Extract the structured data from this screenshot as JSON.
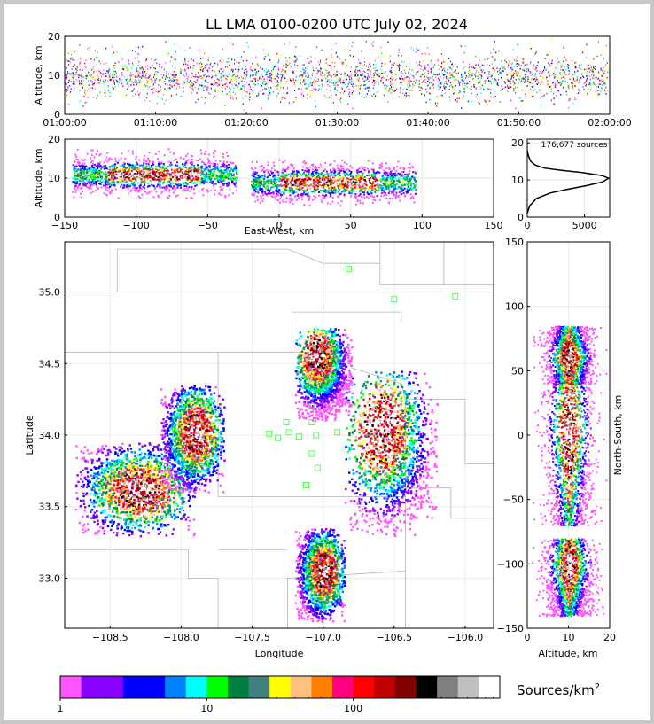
{
  "title": "LL LMA 0100-0200 UTC July 02, 2024",
  "chart_data": [
    {
      "id": "time_height",
      "type": "heatmap",
      "xlabel": "",
      "ylabel": "Altitude, km",
      "x_ticks": [
        "01:00:00",
        "01:10:00",
        "01:20:00",
        "01:30:00",
        "01:40:00",
        "01:50:00",
        "02:00:00"
      ],
      "xlim": [
        "01:00:00",
        "02:00:00"
      ],
      "ylim": [
        0,
        20
      ],
      "y_ticks": [
        0,
        10,
        20
      ],
      "grid": false,
      "description_values": {
        "dense_altitude_band_km": [
          4,
          15
        ],
        "peak_altitude_km": 10
      }
    },
    {
      "id": "ew_height",
      "type": "heatmap",
      "xlabel": "East-West, km",
      "ylabel": "Altitude, km",
      "xlim": [
        -150,
        150
      ],
      "x_ticks": [
        -150,
        -100,
        -50,
        0,
        50,
        100,
        150
      ],
      "ylim": [
        0,
        20
      ],
      "y_ticks": [
        0,
        10,
        20
      ],
      "grid": true,
      "clusters": [
        {
          "x_range_km": [
            -145,
            -30
          ],
          "z_range_km": [
            5,
            19
          ],
          "core_x_km": [
            -120,
            -55
          ],
          "core_z_km": 11
        },
        {
          "x_range_km": [
            -20,
            95
          ],
          "z_range_km": [
            3,
            15
          ],
          "core_x_km": [
            0,
            70
          ],
          "core_z_km": 9
        }
      ]
    },
    {
      "id": "altitude_histogram",
      "type": "line",
      "annotation": "176,677 sources",
      "xlim": [
        0,
        7200
      ],
      "x_ticks": [
        0,
        5000
      ],
      "ylim": [
        0,
        21
      ],
      "y_ticks": [
        0,
        10,
        20
      ],
      "x": [
        0,
        200,
        800,
        2000,
        3500,
        5200,
        6600,
        7100,
        6500,
        4800,
        3000,
        1500,
        700,
        300,
        100,
        0
      ],
      "y": [
        1,
        3,
        5,
        6.5,
        7.5,
        8.5,
        9.5,
        10.5,
        11.2,
        12,
        12.6,
        13.2,
        14,
        15,
        16.5,
        18
      ]
    },
    {
      "id": "plan_view",
      "type": "heatmap",
      "xlabel": "Longitude",
      "ylabel": "Latitude",
      "xlim": [
        -108.82,
        -105.8
      ],
      "ylim": [
        32.65,
        35.35
      ],
      "x_ticks": [
        -108.5,
        -108.0,
        -107.5,
        -107.0,
        -106.5,
        -106.0
      ],
      "x_tick_labels": [
        "−108.5",
        "−108.0",
        "−107.5",
        "−107.0",
        "−106.5",
        "−106.0"
      ],
      "y_ticks": [
        33.0,
        33.5,
        34.0,
        34.5,
        35.0
      ],
      "y_tick_labels": [
        "33.0",
        "33.5",
        "34.0",
        "34.5",
        "35.0"
      ],
      "stations": [
        {
          "lon": -106.82,
          "lat": 35.16
        },
        {
          "lon": -106.5,
          "lat": 34.95
        },
        {
          "lon": -106.07,
          "lat": 34.97
        },
        {
          "lon": -107.26,
          "lat": 34.09
        },
        {
          "lon": -107.08,
          "lat": 34.2
        },
        {
          "lon": -107.08,
          "lat": 34.09
        },
        {
          "lon": -107.38,
          "lat": 34.01
        },
        {
          "lon": -107.24,
          "lat": 34.02
        },
        {
          "lon": -107.32,
          "lat": 33.98
        },
        {
          "lon": -107.17,
          "lat": 33.99
        },
        {
          "lon": -107.05,
          "lat": 34.0
        },
        {
          "lon": -106.9,
          "lat": 34.02
        },
        {
          "lon": -107.08,
          "lat": 33.87
        },
        {
          "lon": -107.04,
          "lat": 33.77
        },
        {
          "lon": -107.12,
          "lat": 33.65
        }
      ],
      "storms": [
        {
          "lon_range": [
            -108.75,
            -107.9
          ],
          "lat_range": [
            33.3,
            33.95
          ],
          "core": [
            -108.3,
            33.62
          ]
        },
        {
          "lon_range": [
            -108.15,
            -107.7
          ],
          "lat_range": [
            33.6,
            34.35
          ],
          "core": [
            -107.9,
            34.02
          ]
        },
        {
          "lon_range": [
            -107.2,
            -106.8
          ],
          "lat_range": [
            34.1,
            34.75
          ],
          "core": [
            -107.05,
            34.55
          ]
        },
        {
          "lon_range": [
            -106.85,
            -106.2
          ],
          "lat_range": [
            33.3,
            34.45
          ],
          "core": [
            -106.6,
            34.05
          ]
        },
        {
          "lon_range": [
            -107.2,
            -106.85
          ],
          "lat_range": [
            32.7,
            33.35
          ],
          "core": [
            -107.0,
            33.05
          ]
        }
      ]
    },
    {
      "id": "ns_height",
      "type": "heatmap",
      "xlabel": "Altitude, km",
      "ylabel": "North-South, km",
      "xlim": [
        0,
        20
      ],
      "x_ticks": [
        0,
        10,
        20
      ],
      "ylim": [
        -150,
        150
      ],
      "y_ticks": [
        -150,
        -100,
        -50,
        0,
        50,
        100,
        150
      ],
      "y_tick_labels": [
        "−150",
        "−100",
        "−50",
        "0",
        "50",
        "100",
        "150"
      ]
    }
  ],
  "colorbar": {
    "label": "Sources/km",
    "label_exponent": "2",
    "tick_labels": [
      "1",
      "10",
      "100"
    ],
    "tick_values": [
      1,
      10,
      100
    ],
    "range": [
      1,
      1000
    ],
    "colors": [
      "#ff55ff",
      "#8800ff",
      "#8800ff",
      "#0000ff",
      "#0000ff",
      "#0080ff",
      "#00ffff",
      "#00ff00",
      "#008040",
      "#408080",
      "#ffff00",
      "#ffc080",
      "#ff8000",
      "#ff0080",
      "#ff0000",
      "#c00000",
      "#800000",
      "#000000",
      "#808080",
      "#c0c0c0",
      "#ffffff"
    ]
  },
  "neg_labels": {
    "ew": [
      "−150",
      "−100",
      "−50",
      "0",
      "50",
      "100",
      "150"
    ],
    "hist_x": [
      "0",
      "5000"
    ]
  }
}
